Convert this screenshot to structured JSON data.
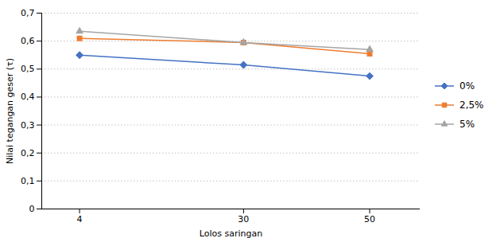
{
  "chart_data": {
    "type": "line",
    "x": [
      4,
      30,
      50
    ],
    "series": [
      {
        "name": "0%",
        "color": "#4472C4",
        "marker": "diamond",
        "values": [
          0.55,
          0.515,
          0.475
        ]
      },
      {
        "name": "2,5%",
        "color": "#ED7D31",
        "marker": "square",
        "values": [
          0.61,
          0.595,
          0.555
        ]
      },
      {
        "name": "5%",
        "color": "#A5A5A5",
        "marker": "triangle",
        "values": [
          0.635,
          0.595,
          0.57
        ]
      }
    ],
    "xlabel": "Lolos saringan",
    "ylabel": "Nilai tegangan geser (τ)",
    "xlim": [
      -2,
      58
    ],
    "xticks": [
      4,
      30,
      50
    ],
    "ylim": [
      0,
      0.7
    ],
    "yticks": [
      0,
      {
        "value": 0.1,
        "label": "0,1"
      },
      {
        "value": 0.2,
        "label": "0,2"
      },
      {
        "value": 0.3,
        "label": "0,3"
      },
      {
        "value": 0.4,
        "label": "0,4"
      },
      {
        "value": 0.5,
        "label": "0,5"
      },
      {
        "value": 0.6,
        "label": "0,6"
      },
      {
        "value": 0.7,
        "label": "0,7"
      }
    ],
    "grid": true,
    "legend": "right"
  }
}
